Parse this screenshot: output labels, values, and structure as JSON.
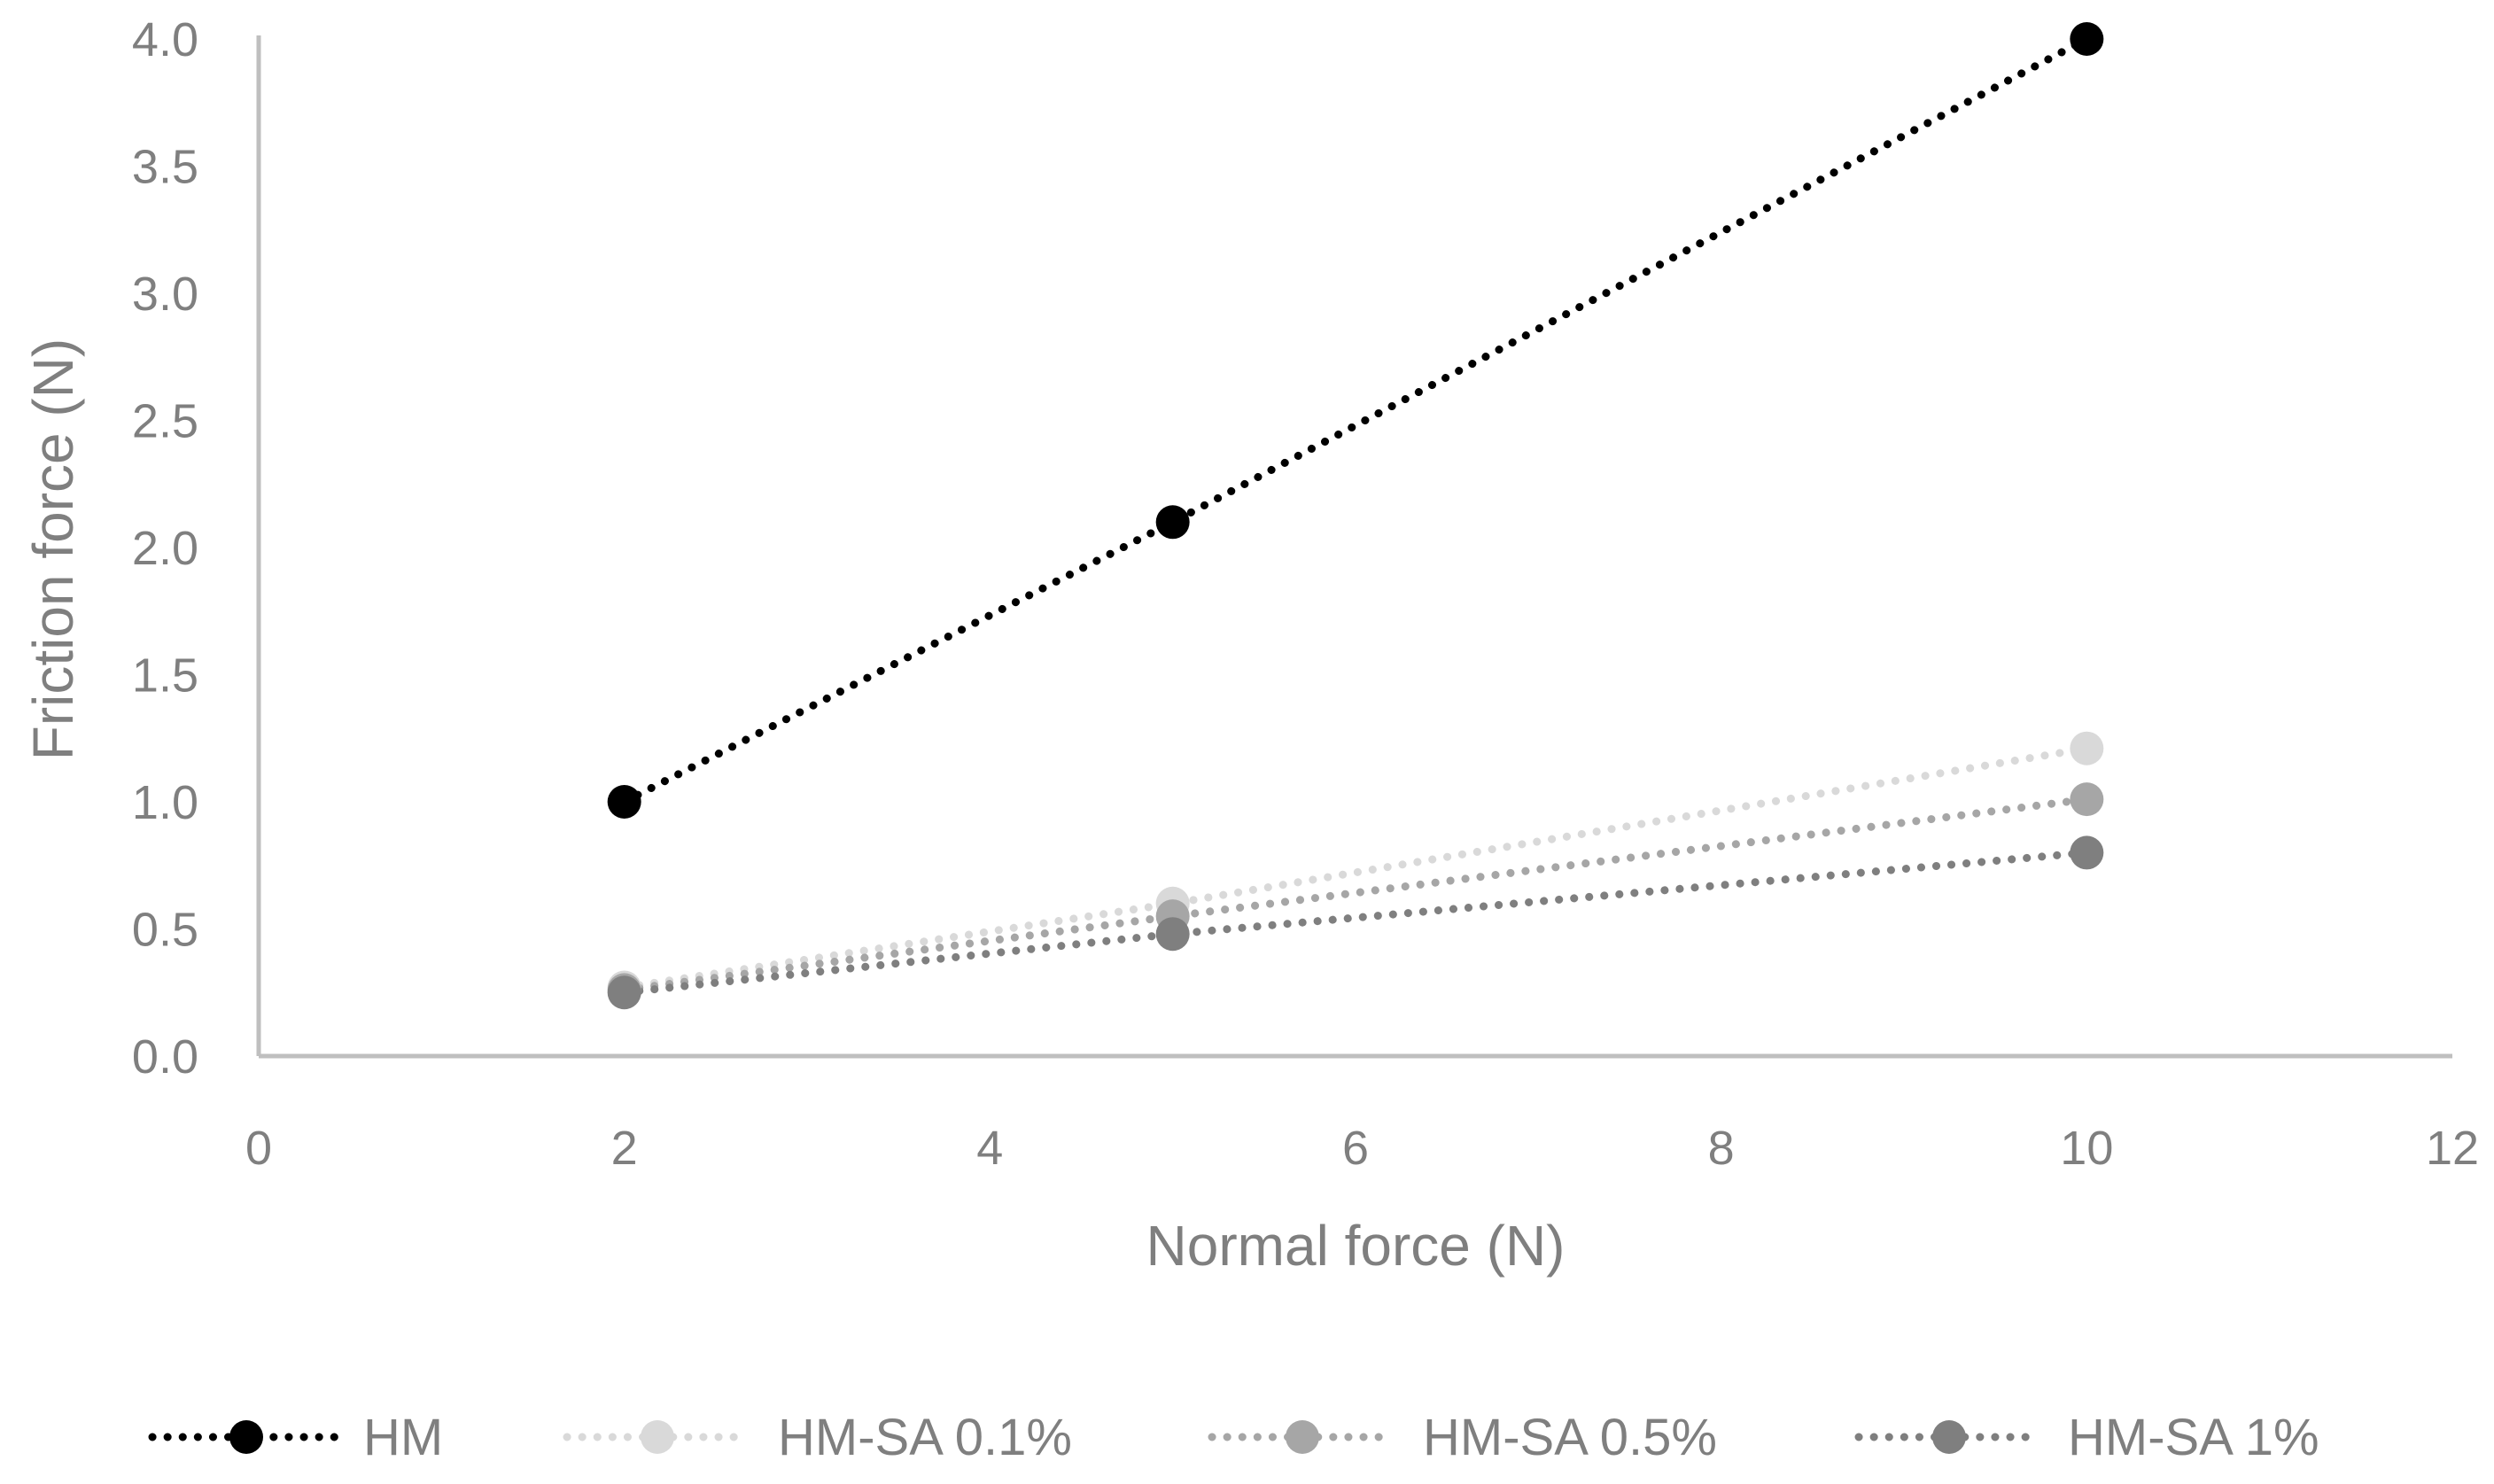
{
  "chart_data": {
    "type": "line",
    "title": "",
    "xlabel": "Normal force (N)",
    "ylabel": "Friction force (N)",
    "xlim": [
      0,
      12
    ],
    "ylim": [
      0,
      4.0
    ],
    "x_ticks": [
      0,
      2,
      4,
      6,
      8,
      10,
      12
    ],
    "y_ticks": [
      0.0,
      0.5,
      1.0,
      1.5,
      2.0,
      2.5,
      3.0,
      3.5,
      4.0
    ],
    "x_tick_labels": [
      "0",
      "2",
      "4",
      "6",
      "8",
      "10",
      "12"
    ],
    "y_tick_labels": [
      "0.0",
      "0.5",
      "1.0",
      "1.5",
      "2.0",
      "2.5",
      "3.0",
      "3.5",
      "4.0"
    ],
    "grid": false,
    "legend_position": "bottom",
    "line_style": "dotted",
    "series": [
      {
        "name": "HM",
        "color": "#000000",
        "x": [
          2,
          5,
          10
        ],
        "y": [
          1.0,
          2.1,
          4.0
        ]
      },
      {
        "name": "HM-SA 0.1%",
        "color": "#d9d9d9",
        "x": [
          2,
          5,
          10
        ],
        "y": [
          0.27,
          0.6,
          1.21
        ]
      },
      {
        "name": "HM-SA 0.5%",
        "color": "#a6a6a6",
        "x": [
          2,
          5,
          10
        ],
        "y": [
          0.26,
          0.55,
          1.01
        ]
      },
      {
        "name": "HM-SA 1%",
        "color": "#7f7f7f",
        "x": [
          2,
          5,
          10
        ],
        "y": [
          0.25,
          0.48,
          0.8
        ]
      }
    ]
  }
}
